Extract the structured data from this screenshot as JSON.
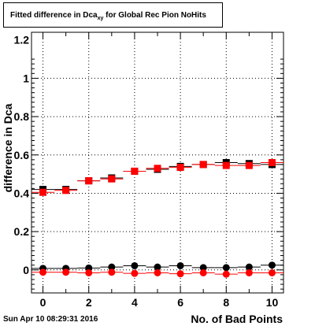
{
  "title": {
    "main": "Fitted difference in Dca",
    "sub": "xy",
    "rest": " for Global Rec Pion NoHits"
  },
  "timestamp": "Sun Apr 10 08:29:31 2016",
  "chart_data": {
    "type": "scatter",
    "xlabel": "No. of Bad Points",
    "ylabel": "difference in Dca",
    "xlim": [
      -0.5,
      10.5
    ],
    "ylim": [
      -0.12,
      1.24
    ],
    "xticks": [
      0,
      2,
      4,
      6,
      8,
      10
    ],
    "yticks": [
      0,
      0.2,
      0.4,
      0.6,
      0.8,
      1
    ],
    "ytick_labels": [
      "0",
      "0.2",
      "0.4",
      "0.6",
      "0.8",
      "1"
    ],
    "xtick_labels": [
      "0",
      "2",
      "4",
      "6",
      "8",
      "10"
    ],
    "yaxis_top_label": "1.2",
    "grid": true,
    "colors": {
      "black": "#000000",
      "red": "#ff0000"
    },
    "series": [
      {
        "color": "#000000",
        "marker": "square",
        "x": [
          0,
          1,
          2,
          3,
          4,
          5,
          6,
          7,
          8,
          9,
          10
        ],
        "y": [
          0.42,
          0.42,
          0.465,
          0.48,
          0.515,
          0.525,
          0.54,
          0.55,
          0.56,
          0.555,
          0.55
        ]
      },
      {
        "color": "#ff0000",
        "marker": "square",
        "x": [
          0,
          1,
          2,
          3,
          4,
          5,
          6,
          7,
          8,
          9,
          10
        ],
        "y": [
          0.405,
          0.415,
          0.465,
          0.475,
          0.515,
          0.53,
          0.535,
          0.55,
          0.545,
          0.545,
          0.56
        ]
      },
      {
        "color": "#000000",
        "marker": "circle",
        "x": [
          0,
          1,
          2,
          3,
          4,
          5,
          6,
          7,
          8,
          9,
          10
        ],
        "y": [
          0.008,
          0.008,
          0.01,
          0.015,
          0.022,
          0.015,
          0.022,
          0.012,
          0.012,
          0.015,
          0.025
        ]
      },
      {
        "color": "#ff0000",
        "marker": "circle",
        "x": [
          0,
          1,
          2,
          3,
          4,
          5,
          6,
          7,
          8,
          9,
          10
        ],
        "y": [
          -0.012,
          -0.012,
          -0.015,
          -0.012,
          -0.018,
          -0.015,
          -0.02,
          -0.015,
          -0.022,
          -0.015,
          -0.015
        ]
      }
    ]
  }
}
